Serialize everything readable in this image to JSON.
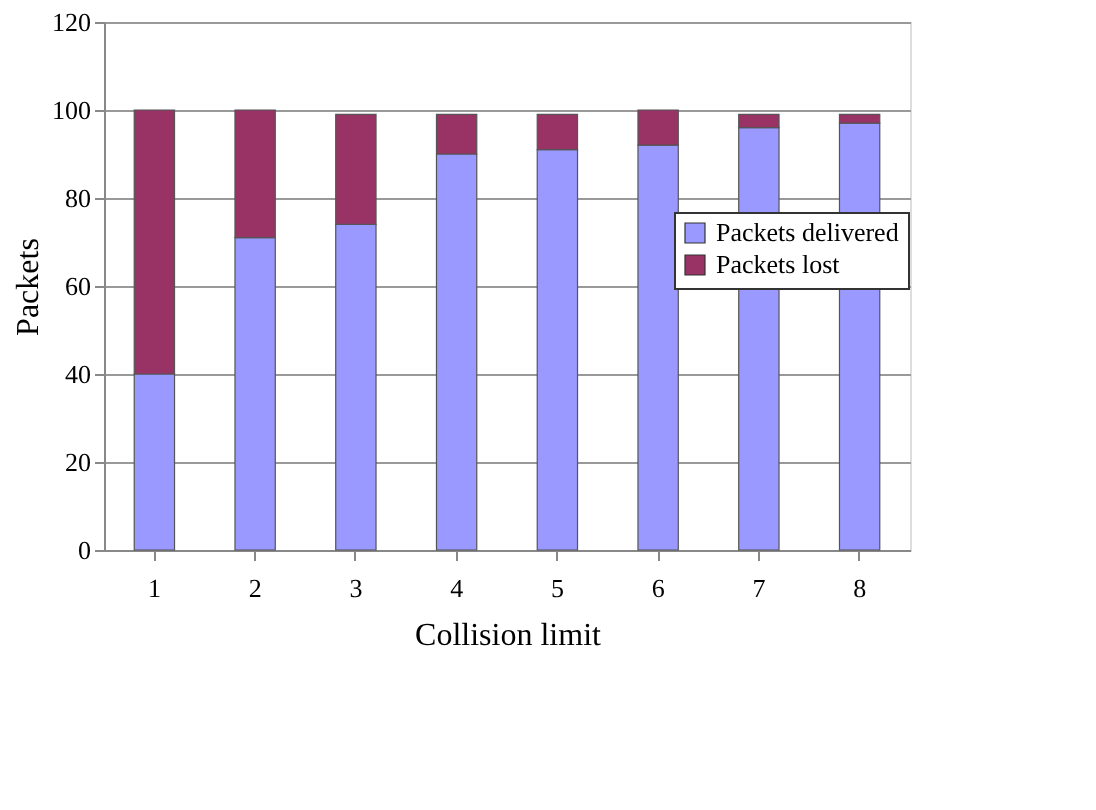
{
  "chart_data": {
    "type": "bar",
    "stacked": true,
    "xlabel": "Collision limit",
    "ylabel": "Packets",
    "categories": [
      "1",
      "2",
      "3",
      "4",
      "5",
      "6",
      "7",
      "8"
    ],
    "series": [
      {
        "name": "Packets delivered",
        "color": "#9999ff",
        "values": [
          40,
          71,
          74,
          90,
          91,
          92,
          96,
          97
        ]
      },
      {
        "name": "Packets lost",
        "color": "#993366",
        "values": [
          60,
          29,
          25,
          9,
          8,
          8,
          3,
          2
        ]
      }
    ],
    "ylim": [
      0,
      120
    ],
    "yticks": [
      0,
      20,
      40,
      60,
      80,
      100,
      120
    ],
    "grid": "y",
    "legend": "right"
  }
}
